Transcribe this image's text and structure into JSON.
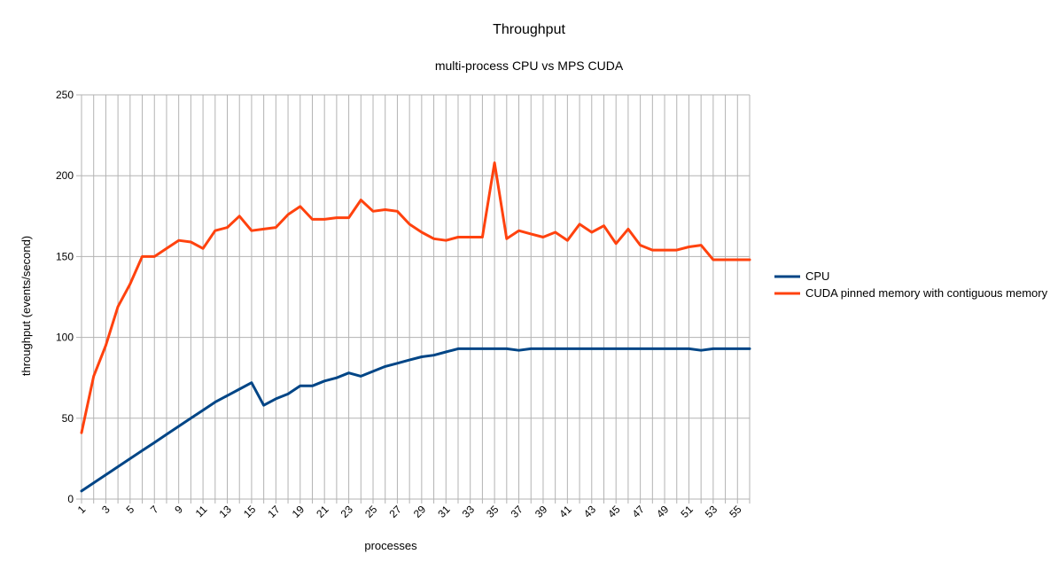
{
  "chart_data": {
    "type": "line",
    "title": "Throughput",
    "subtitle": "multi-process CPU vs MPS CUDA",
    "xlabel": "processes",
    "ylabel": "throughput (events/second)",
    "ylim": [
      0,
      250
    ],
    "yticks": [
      0,
      50,
      100,
      150,
      200,
      250
    ],
    "x": [
      1,
      2,
      3,
      4,
      5,
      6,
      7,
      8,
      9,
      10,
      11,
      12,
      13,
      14,
      15,
      16,
      17,
      18,
      19,
      20,
      21,
      22,
      23,
      24,
      25,
      26,
      27,
      28,
      29,
      30,
      31,
      32,
      33,
      34,
      35,
      36,
      37,
      38,
      39,
      40,
      41,
      42,
      43,
      44,
      45,
      46,
      47,
      48,
      49,
      50,
      51,
      52,
      53,
      54,
      55,
      56
    ],
    "xtick_labels": [
      "1",
      "3",
      "5",
      "7",
      "9",
      "11",
      "13",
      "15",
      "17",
      "19",
      "21",
      "23",
      "25",
      "27",
      "29",
      "31",
      "33",
      "35",
      "37",
      "39",
      "41",
      "43",
      "45",
      "47",
      "49",
      "51",
      "53",
      "55"
    ],
    "grid": "vertical-and-horizontal",
    "legend_position": "right",
    "series": [
      {
        "name": "CPU",
        "color": "#004586",
        "values": [
          5,
          10,
          15,
          20,
          25,
          30,
          35,
          40,
          45,
          50,
          55,
          60,
          64,
          68,
          72,
          58,
          62,
          65,
          70,
          70,
          73,
          75,
          78,
          76,
          79,
          82,
          84,
          86,
          88,
          89,
          91,
          93,
          93,
          93,
          93,
          93,
          92,
          93,
          93,
          93,
          93,
          93,
          93,
          93,
          93,
          93,
          93,
          93,
          93,
          93,
          93,
          92,
          93,
          93,
          93,
          93
        ]
      },
      {
        "name": "CUDA pinned memory with contiguous memory",
        "color": "#ff420e",
        "values": [
          41,
          76,
          95,
          119,
          133,
          150,
          150,
          155,
          160,
          159,
          155,
          166,
          168,
          175,
          166,
          167,
          168,
          176,
          181,
          173,
          173,
          174,
          174,
          185,
          178,
          179,
          178,
          170,
          165,
          161,
          160,
          162,
          162,
          162,
          208,
          161,
          166,
          164,
          162,
          165,
          160,
          170,
          165,
          169,
          158,
          167,
          157,
          154,
          154,
          154,
          156,
          157,
          148,
          148,
          148,
          148
        ]
      }
    ]
  }
}
